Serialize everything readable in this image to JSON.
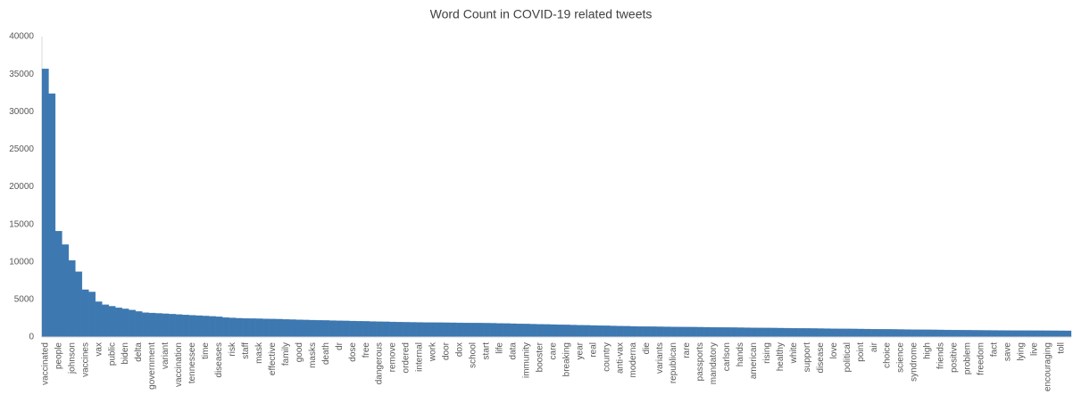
{
  "chart_data": {
    "type": "bar",
    "title": "Word Count in COVID-19 related tweets",
    "color": "#3d78b1",
    "categories": [
      "vaccinated",
      null,
      "people",
      null,
      "johnson",
      null,
      "vaccines",
      null,
      "vax",
      null,
      "public",
      null,
      "biden",
      null,
      "delta",
      null,
      "government",
      null,
      "variant",
      null,
      "vaccination",
      null,
      "tennessee",
      null,
      "time",
      null,
      "diseases",
      null,
      "risk",
      null,
      "staff",
      null,
      "mask",
      null,
      "effective",
      null,
      "family",
      null,
      "good",
      null,
      "masks",
      null,
      "death",
      null,
      "dr",
      null,
      "dose",
      null,
      "free",
      null,
      "dangerous",
      null,
      "remove",
      null,
      "ordered",
      null,
      "internal",
      null,
      "work",
      null,
      "door",
      null,
      "dox",
      null,
      "school",
      null,
      "start",
      null,
      "life",
      null,
      "data",
      null,
      "immunity",
      null,
      "booster",
      null,
      "care",
      null,
      "breaking",
      null,
      "year",
      null,
      "real",
      null,
      "country",
      null,
      "anti-vax",
      null,
      "moderna",
      null,
      "die",
      null,
      "variants",
      null,
      "republican",
      null,
      "rare",
      null,
      "passports",
      null,
      "mandatory",
      null,
      "carlson",
      null,
      "hands",
      null,
      "american",
      null,
      "rising",
      null,
      "healthy",
      null,
      "white",
      null,
      "support",
      null,
      "disease",
      null,
      "love",
      null,
      "political",
      null,
      "point",
      null,
      "air",
      null,
      "choice",
      null,
      "science",
      null,
      "syndrome",
      null,
      "high",
      null,
      "friends",
      null,
      "positive",
      null,
      "problem",
      null,
      "freedom",
      null,
      "fact",
      null,
      "save",
      null,
      "lying",
      null,
      "live",
      null,
      "encouraging",
      null,
      "toll",
      null
    ],
    "values": [
      35700,
      32400,
      14100,
      12300,
      10200,
      8700,
      6300,
      6000,
      4700,
      4300,
      4100,
      3900,
      3750,
      3600,
      3400,
      3250,
      3200,
      3150,
      3100,
      3050,
      3000,
      2950,
      2900,
      2850,
      2800,
      2750,
      2700,
      2600,
      2550,
      2500,
      2480,
      2460,
      2440,
      2420,
      2400,
      2380,
      2350,
      2320,
      2300,
      2270,
      2250,
      2230,
      2210,
      2190,
      2170,
      2150,
      2130,
      2110,
      2090,
      2070,
      2050,
      2030,
      2010,
      1990,
      1970,
      1960,
      1950,
      1940,
      1930,
      1920,
      1910,
      1900,
      1890,
      1880,
      1870,
      1860,
      1850,
      1840,
      1820,
      1800,
      1780,
      1760,
      1740,
      1720,
      1700,
      1680,
      1660,
      1640,
      1620,
      1600,
      1580,
      1560,
      1540,
      1520,
      1500,
      1480,
      1460,
      1440,
      1420,
      1400,
      1390,
      1380,
      1370,
      1360,
      1350,
      1340,
      1330,
      1320,
      1310,
      1300,
      1290,
      1280,
      1270,
      1260,
      1250,
      1240,
      1230,
      1220,
      1210,
      1200,
      1190,
      1180,
      1170,
      1160,
      1150,
      1140,
      1130,
      1120,
      1110,
      1100,
      1090,
      1080,
      1070,
      1060,
      1050,
      1040,
      1030,
      1020,
      1010,
      1000,
      990,
      980,
      970,
      960,
      950,
      940,
      930,
      920,
      910,
      900,
      895,
      890,
      885,
      880,
      875,
      870,
      865,
      860,
      855,
      850,
      845,
      840,
      835,
      830
    ],
    "ylim": [
      0,
      40000
    ],
    "yticks": [
      0,
      5000,
      10000,
      15000,
      20000,
      25000,
      30000,
      35000,
      40000
    ],
    "grid": false
  }
}
